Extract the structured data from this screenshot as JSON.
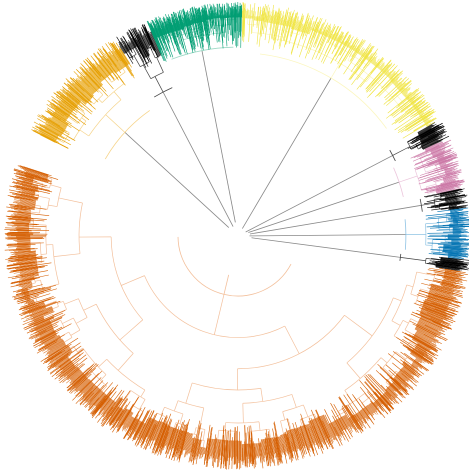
{
  "figure": {
    "kind": "circular-phylogenetic-tree",
    "background": "#ffffff",
    "clades": [
      {
        "id": "clade-yellow",
        "color": "#f0e442",
        "pale_color": "#fbf6c0",
        "start_deg": -89,
        "end_deg": -30,
        "density": 110
      },
      {
        "id": "clade-black-1",
        "color": "#000000",
        "pale_color": "#444444",
        "start_deg": -30,
        "end_deg": -25,
        "density": 14
      },
      {
        "id": "clade-pink",
        "color": "#cc79a7",
        "pale_color": "#ecc6dc",
        "start_deg": -25,
        "end_deg": -12,
        "density": 30
      },
      {
        "id": "clade-black-2",
        "color": "#000000",
        "pale_color": "#444444",
        "start_deg": -12,
        "end_deg": -7,
        "density": 12
      },
      {
        "id": "clade-blue",
        "color": "#0072b2",
        "pale_color": "#8fc3e4",
        "start_deg": -7,
        "end_deg": 6,
        "density": 30
      },
      {
        "id": "clade-black-3",
        "color": "#000000",
        "pale_color": "#444444",
        "start_deg": 6,
        "end_deg": 9,
        "density": 10
      },
      {
        "id": "clade-orange-main",
        "color": "#d55e00",
        "pale_color": "#f3c09c",
        "start_deg": 9,
        "end_deg": 198,
        "density": 340
      },
      {
        "id": "clade-gold",
        "color": "#e69f00",
        "pale_color": "#f6d48a",
        "start_deg": 207,
        "end_deg": 238,
        "density": 60
      },
      {
        "id": "clade-black-4",
        "color": "#000000",
        "pale_color": "#444444",
        "start_deg": 238,
        "end_deg": 247,
        "density": 18
      },
      {
        "id": "clade-green",
        "color": "#009e73",
        "pale_color": "#9ed9c6",
        "start_deg": 247,
        "end_deg": 271,
        "density": 110
      }
    ]
  }
}
